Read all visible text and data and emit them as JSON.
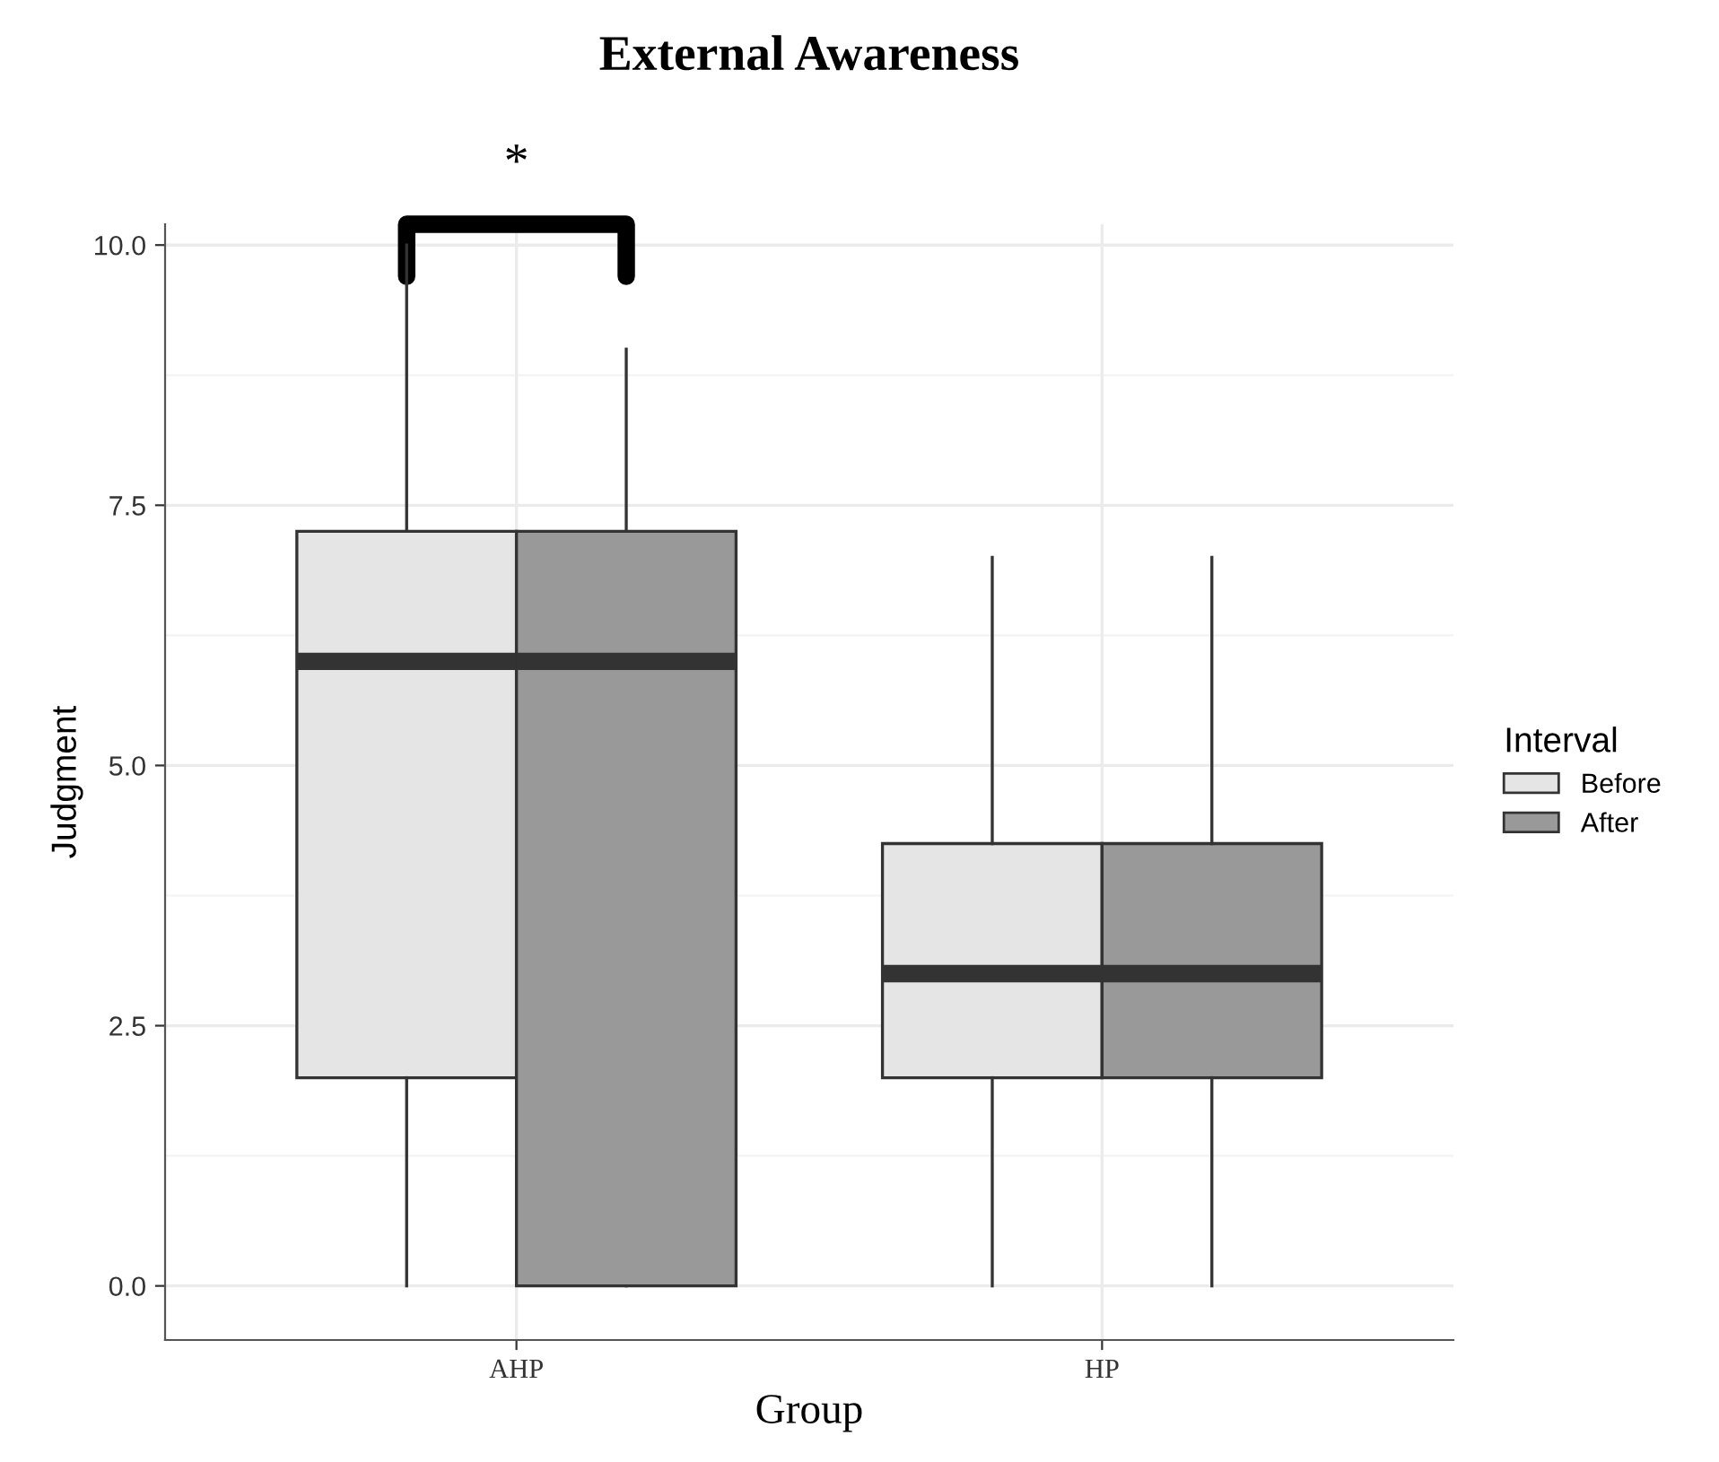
{
  "chart_data": {
    "type": "box",
    "title": "External Awareness",
    "xlabel": "Group",
    "ylabel": "Judgment",
    "legend_title": "Interval",
    "categories": [
      "AHP",
      "HP"
    ],
    "series": [
      {
        "name": "Before",
        "color": "#e5e5e5",
        "boxes": [
          {
            "low": 0,
            "q1": 2,
            "median": 6,
            "q3": 7.25,
            "high": 10
          },
          {
            "low": 0,
            "q1": 2,
            "median": 3,
            "q3": 4.25,
            "high": 7
          }
        ]
      },
      {
        "name": "After",
        "color": "#999999",
        "boxes": [
          {
            "low": 0,
            "q1": 0,
            "median": 6,
            "q3": 7.25,
            "high": 9
          },
          {
            "low": 0,
            "q1": 2,
            "median": 3,
            "q3": 4.25,
            "high": 7
          }
        ]
      }
    ],
    "ylim": [
      -0.52,
      10.2
    ],
    "yticks": [
      {
        "value": 0,
        "label": "0.0"
      },
      {
        "value": 2.5,
        "label": "2.5"
      },
      {
        "value": 5,
        "label": "5.0"
      },
      {
        "value": 7.5,
        "label": "7.5"
      },
      {
        "value": 10,
        "label": "10.0"
      }
    ],
    "grid": true,
    "legend": "right",
    "annotations": [
      "*"
    ]
  }
}
